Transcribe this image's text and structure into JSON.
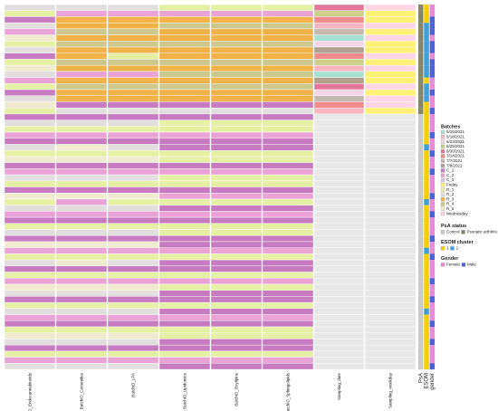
{
  "heatmap": {
    "columns": [
      {
        "label": "BatchID_Endocannabinoids",
        "values": [
          13,
          12,
          8,
          13,
          9,
          16,
          12,
          13,
          8,
          12,
          16,
          13,
          9,
          12,
          8,
          13,
          16,
          12,
          8,
          13,
          12,
          9,
          8,
          13,
          12,
          16,
          8,
          9,
          13,
          12,
          8,
          16,
          12,
          13,
          9,
          8,
          12,
          13,
          8,
          16,
          9,
          12,
          13,
          8,
          12,
          9,
          16,
          13,
          8,
          12,
          13,
          9,
          8,
          12,
          16,
          13,
          8,
          12,
          9,
          13
        ]
      },
      {
        "label": "BatchID_Ceramides",
        "values": [
          13,
          9,
          14,
          14,
          15,
          14,
          15,
          14,
          14,
          15,
          14,
          9,
          14,
          15,
          14,
          14,
          8,
          13,
          8,
          13,
          12,
          9,
          8,
          16,
          12,
          16,
          8,
          9,
          13,
          12,
          8,
          16,
          9,
          13,
          9,
          8,
          12,
          13,
          8,
          16,
          9,
          12,
          16,
          8,
          12,
          9,
          16,
          13,
          8,
          12,
          13,
          9,
          8,
          12,
          16,
          13,
          8,
          12,
          9,
          13
        ]
      },
      {
        "label": "BatchID_LPA",
        "values": [
          13,
          9,
          14,
          14,
          15,
          14,
          15,
          14,
          12,
          15,
          14,
          9,
          14,
          15,
          14,
          14,
          8,
          13,
          8,
          13,
          12,
          9,
          8,
          13,
          12,
          16,
          8,
          9,
          13,
          12,
          8,
          16,
          12,
          13,
          9,
          8,
          12,
          13,
          8,
          16,
          9,
          12,
          13,
          8,
          12,
          9,
          16,
          13,
          8,
          12,
          13,
          9,
          8,
          12,
          16,
          13,
          8,
          12,
          9,
          13
        ]
      },
      {
        "label": "BatchID_Lipidomics",
        "values": [
          12,
          9,
          14,
          15,
          14,
          14,
          15,
          14,
          14,
          15,
          14,
          15,
          14,
          15,
          14,
          14,
          8,
          13,
          8,
          12,
          12,
          9,
          8,
          8,
          12,
          12,
          8,
          9,
          12,
          12,
          8,
          9,
          12,
          8,
          9,
          8,
          12,
          12,
          8,
          8,
          9,
          12,
          8,
          8,
          12,
          9,
          12,
          8,
          8,
          12,
          8,
          9,
          8,
          12,
          12,
          8,
          8,
          12,
          9,
          8
        ]
      },
      {
        "label": "BatchID_Oxylipins",
        "values": [
          12,
          9,
          14,
          15,
          14,
          14,
          15,
          14,
          14,
          15,
          14,
          15,
          14,
          15,
          14,
          14,
          8,
          13,
          8,
          12,
          12,
          9,
          8,
          8,
          12,
          12,
          8,
          9,
          12,
          12,
          8,
          9,
          12,
          8,
          9,
          8,
          12,
          12,
          8,
          8,
          9,
          12,
          8,
          8,
          12,
          9,
          12,
          8,
          8,
          12,
          8,
          9,
          8,
          12,
          12,
          8,
          8,
          12,
          9,
          8
        ]
      },
      {
        "label": "BatchID_Sphingolipids",
        "values": [
          12,
          9,
          14,
          15,
          14,
          14,
          15,
          14,
          14,
          15,
          14,
          15,
          14,
          15,
          14,
          14,
          8,
          13,
          8,
          12,
          12,
          9,
          8,
          8,
          12,
          12,
          8,
          9,
          12,
          12,
          8,
          9,
          12,
          8,
          9,
          8,
          12,
          12,
          8,
          8,
          9,
          12,
          8,
          8,
          12,
          9,
          12,
          8,
          8,
          12,
          8,
          9,
          8,
          12,
          12,
          8,
          8,
          12,
          9,
          8
        ]
      },
      {
        "label": "Sampling_date",
        "values": [
          4,
          3,
          5,
          1,
          6,
          0,
          2,
          7,
          5,
          3,
          1,
          0,
          7,
          4,
          2,
          6,
          5,
          1,
          null,
          null,
          null,
          null,
          null,
          null,
          null,
          null,
          null,
          null,
          null,
          null,
          null,
          null,
          null,
          null,
          null,
          null,
          null,
          null,
          null,
          null,
          null,
          null,
          null,
          null,
          null,
          null,
          null,
          null,
          null,
          null,
          null,
          null,
          null,
          null,
          null,
          null,
          null,
          null,
          null,
          null
        ]
      },
      {
        "label": "Sampling_weekday",
        "values": [
          17,
          11,
          11,
          17,
          11,
          17,
          11,
          11,
          17,
          11,
          17,
          11,
          11,
          17,
          11,
          17,
          17,
          11,
          null,
          null,
          null,
          null,
          null,
          null,
          null,
          null,
          null,
          null,
          null,
          null,
          null,
          null,
          null,
          null,
          null,
          null,
          null,
          null,
          null,
          null,
          null,
          null,
          null,
          null,
          null,
          null,
          null,
          null,
          null,
          null,
          null,
          null,
          null,
          null,
          null,
          null,
          null,
          null,
          null,
          null
        ]
      }
    ],
    "annotations": [
      {
        "label": "PsA",
        "values": [
          1,
          1,
          1,
          1,
          1,
          1,
          1,
          1,
          1,
          1,
          1,
          1,
          1,
          1,
          1,
          1,
          1,
          1,
          0,
          0,
          0,
          0,
          0,
          0,
          0,
          0,
          0,
          0,
          0,
          0,
          0,
          0,
          0,
          0,
          0,
          0,
          0,
          0,
          0,
          0,
          0,
          0,
          0,
          0,
          0,
          0,
          0,
          0,
          0,
          0,
          0,
          0,
          0,
          0,
          0,
          0,
          0,
          0,
          0,
          0
        ]
      },
      {
        "label": "ESOM",
        "values": [
          0,
          0,
          0,
          1,
          1,
          1,
          1,
          1,
          1,
          1,
          1,
          1,
          0,
          1,
          1,
          1,
          0,
          0,
          0,
          0,
          0,
          0,
          0,
          1,
          0,
          0,
          0,
          0,
          0,
          0,
          0,
          0,
          1,
          0,
          0,
          0,
          0,
          0,
          0,
          0,
          1,
          0,
          0,
          0,
          0,
          0,
          0,
          0,
          0,
          0,
          1,
          0,
          0,
          0,
          0,
          0,
          0,
          0,
          0,
          0
        ]
      },
      {
        "label": "gender",
        "values": [
          0,
          0,
          1,
          1,
          1,
          0,
          1,
          1,
          0,
          1,
          1,
          1,
          0,
          0,
          1,
          0,
          0,
          1,
          0,
          0,
          0,
          1,
          0,
          0,
          1,
          0,
          0,
          1,
          0,
          0,
          0,
          1,
          0,
          0,
          1,
          0,
          0,
          0,
          1,
          0,
          0,
          1,
          0,
          0,
          0,
          1,
          0,
          0,
          1,
          0,
          0,
          0,
          1,
          0,
          0,
          1,
          0,
          0,
          0,
          1
        ]
      }
    ]
  },
  "legends": [
    {
      "title": "Batches",
      "entries": [
        {
          "label": "5/15/2021",
          "color": "#a6e0d0"
        },
        {
          "label": "5/18/2021",
          "color": "#f7b6c2"
        },
        {
          "label": "6/23/2021",
          "color": "#f5d6e6"
        },
        {
          "label": "6/25/2021",
          "color": "#cbd08a"
        },
        {
          "label": "6/30/2021",
          "color": "#e3789a"
        },
        {
          "label": "7/14/2021",
          "color": "#f28c8c"
        },
        {
          "label": "7/7/2021",
          "color": "#c5b8b0"
        },
        {
          "label": "7/8/2021",
          "color": "#b0a090"
        },
        {
          "label": "C_1",
          "color": "#c77cc2"
        },
        {
          "label": "C_2",
          "color": "#e9a3d6"
        },
        {
          "label": "C_3",
          "color": "#d9c5e8"
        },
        {
          "label": "Friday",
          "color": "#fff176"
        },
        {
          "label": "R_1",
          "color": "#e5f0a5"
        },
        {
          "label": "R_2",
          "color": "#e2dede"
        },
        {
          "label": "R_3",
          "color": "#f2b24a"
        },
        {
          "label": "R_4",
          "color": "#cdc98e"
        },
        {
          "label": "R_5",
          "color": "#f0ebcf"
        },
        {
          "label": "Wednesday",
          "color": "#ffd6e6"
        }
      ]
    },
    {
      "title": "PsA status",
      "entries": [
        {
          "label": "Control",
          "color": "#c9c9c9"
        },
        {
          "label": "Psoriatic arthritis",
          "color": "#86866a"
        }
      ]
    },
    {
      "title": "ESOM cluster",
      "entries": [
        {
          "label": "1",
          "color": "#f5d000"
        },
        {
          "label": "2",
          "color": "#3fa0d8"
        }
      ]
    },
    {
      "title": "Gender",
      "entries": [
        {
          "label": "Female",
          "color": "#e88ad8"
        },
        {
          "label": "Male",
          "color": "#4b63d8"
        }
      ]
    }
  ]
}
